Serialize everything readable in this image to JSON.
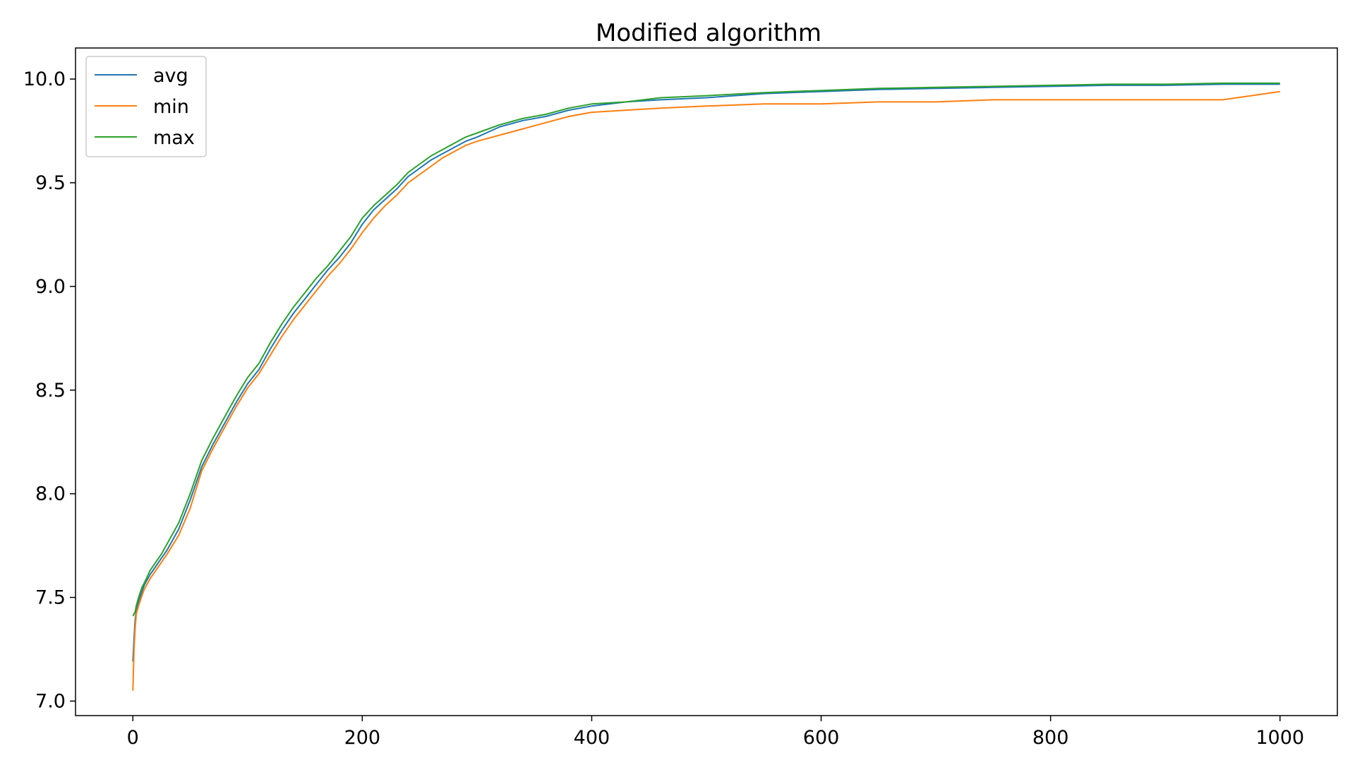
{
  "chart_data": {
    "type": "line",
    "title": "Modified algorithm",
    "xlabel": "",
    "ylabel": "",
    "xlim": [
      -50,
      1050
    ],
    "ylim": [
      6.93,
      10.15
    ],
    "xticks": [
      0,
      200,
      400,
      600,
      800,
      1000
    ],
    "xtick_labels": [
      "0",
      "200",
      "400",
      "600",
      "800",
      "1000"
    ],
    "yticks": [
      7.0,
      7.5,
      8.0,
      8.5,
      9.0,
      9.5,
      10.0
    ],
    "ytick_labels": [
      "7.0",
      "7.5",
      "8.0",
      "8.5",
      "9.0",
      "9.5",
      "10.0"
    ],
    "grid": false,
    "legend_position": "top-left",
    "series": [
      {
        "name": "avg",
        "color": "#1f77b4",
        "x": [
          0,
          1,
          2,
          3,
          5,
          8,
          10,
          15,
          20,
          25,
          30,
          40,
          50,
          60,
          70,
          80,
          90,
          100,
          110,
          120,
          130,
          140,
          150,
          160,
          170,
          180,
          190,
          200,
          210,
          220,
          230,
          240,
          250,
          260,
          270,
          280,
          290,
          300,
          320,
          340,
          360,
          380,
          400,
          430,
          460,
          500,
          550,
          600,
          650,
          700,
          750,
          800,
          850,
          900,
          950,
          1000
        ],
        "y": [
          7.19,
          7.3,
          7.39,
          7.44,
          7.48,
          7.53,
          7.56,
          7.61,
          7.65,
          7.69,
          7.73,
          7.83,
          7.97,
          8.13,
          8.24,
          8.34,
          8.44,
          8.53,
          8.6,
          8.7,
          8.79,
          8.87,
          8.94,
          9.01,
          9.08,
          9.14,
          9.21,
          9.3,
          9.37,
          9.42,
          9.47,
          9.53,
          9.57,
          9.61,
          9.64,
          9.67,
          9.7,
          9.72,
          9.77,
          9.8,
          9.82,
          9.85,
          9.87,
          9.89,
          9.9,
          9.91,
          9.93,
          9.94,
          9.95,
          9.955,
          9.96,
          9.965,
          9.97,
          9.97,
          9.975,
          9.975
        ]
      },
      {
        "name": "min",
        "color": "#ff7f0e",
        "x": [
          0,
          1,
          2,
          3,
          5,
          8,
          10,
          15,
          20,
          25,
          30,
          40,
          50,
          60,
          70,
          80,
          90,
          100,
          110,
          120,
          130,
          140,
          150,
          160,
          170,
          180,
          190,
          200,
          210,
          220,
          230,
          240,
          250,
          260,
          270,
          280,
          290,
          300,
          320,
          340,
          360,
          380,
          400,
          430,
          460,
          500,
          550,
          600,
          650,
          700,
          750,
          800,
          850,
          900,
          950,
          1000
        ],
        "y": [
          7.05,
          7.25,
          7.35,
          7.42,
          7.46,
          7.51,
          7.54,
          7.59,
          7.63,
          7.67,
          7.71,
          7.8,
          7.93,
          8.11,
          8.22,
          8.32,
          8.42,
          8.51,
          8.58,
          8.67,
          8.76,
          8.84,
          8.91,
          8.98,
          9.05,
          9.11,
          9.18,
          9.26,
          9.33,
          9.39,
          9.44,
          9.5,
          9.54,
          9.58,
          9.62,
          9.65,
          9.68,
          9.7,
          9.73,
          9.76,
          9.79,
          9.82,
          9.84,
          9.85,
          9.86,
          9.87,
          9.88,
          9.88,
          9.89,
          9.89,
          9.9,
          9.9,
          9.9,
          9.9,
          9.9,
          9.94
        ]
      },
      {
        "name": "max",
        "color": "#2ca02c",
        "x": [
          0,
          1,
          2,
          3,
          5,
          8,
          10,
          15,
          20,
          25,
          30,
          40,
          50,
          60,
          70,
          80,
          90,
          100,
          110,
          120,
          130,
          140,
          150,
          160,
          170,
          180,
          190,
          200,
          210,
          220,
          230,
          240,
          250,
          260,
          270,
          280,
          290,
          300,
          320,
          340,
          360,
          380,
          400,
          430,
          460,
          500,
          550,
          600,
          650,
          700,
          750,
          800,
          850,
          900,
          950,
          1000
        ],
        "y": [
          7.41,
          7.42,
          7.43,
          7.46,
          7.5,
          7.55,
          7.57,
          7.63,
          7.67,
          7.71,
          7.76,
          7.86,
          8.0,
          8.16,
          8.27,
          8.37,
          8.47,
          8.56,
          8.63,
          8.73,
          8.82,
          8.9,
          8.97,
          9.04,
          9.1,
          9.17,
          9.24,
          9.33,
          9.39,
          9.44,
          9.49,
          9.55,
          9.59,
          9.63,
          9.66,
          9.69,
          9.72,
          9.74,
          9.78,
          9.81,
          9.83,
          9.86,
          9.88,
          9.89,
          9.91,
          9.92,
          9.935,
          9.945,
          9.955,
          9.96,
          9.965,
          9.97,
          9.975,
          9.975,
          9.98,
          9.98
        ]
      }
    ]
  }
}
